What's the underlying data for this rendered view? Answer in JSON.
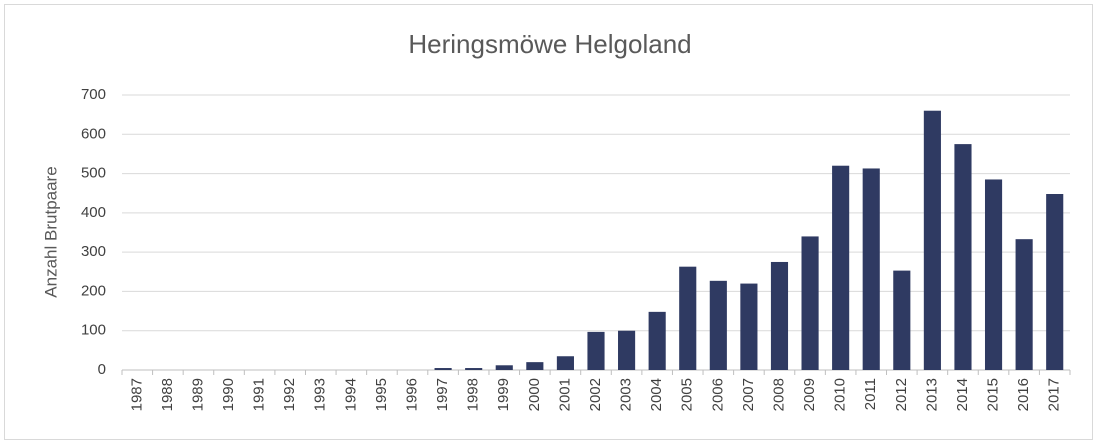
{
  "chart_data": {
    "type": "bar",
    "title": "Heringsmöwe Helgoland",
    "y_label": "Anzahl Brutpaare",
    "categories": [
      "1987",
      "1988",
      "1989",
      "1990",
      "1991",
      "1992",
      "1993",
      "1994",
      "1995",
      "1996",
      "1997",
      "1998",
      "1999",
      "2000",
      "2001",
      "2002",
      "2003",
      "2004",
      "2005",
      "2006",
      "2007",
      "2008",
      "2009",
      "2010",
      "2011",
      "2012",
      "2013",
      "2014",
      "2015",
      "2016",
      "2017"
    ],
    "values": [
      0,
      0,
      0,
      0,
      0,
      0,
      0,
      0,
      0,
      0,
      5,
      5,
      12,
      20,
      35,
      97,
      100,
      148,
      263,
      227,
      220,
      275,
      340,
      520,
      513,
      253,
      660,
      575,
      485,
      333,
      448
    ],
    "color": "#2f3a62",
    "ylim": [
      0,
      700
    ],
    "yticks": [
      0,
      100,
      200,
      300,
      400,
      500,
      600,
      700
    ],
    "grid": true
  }
}
